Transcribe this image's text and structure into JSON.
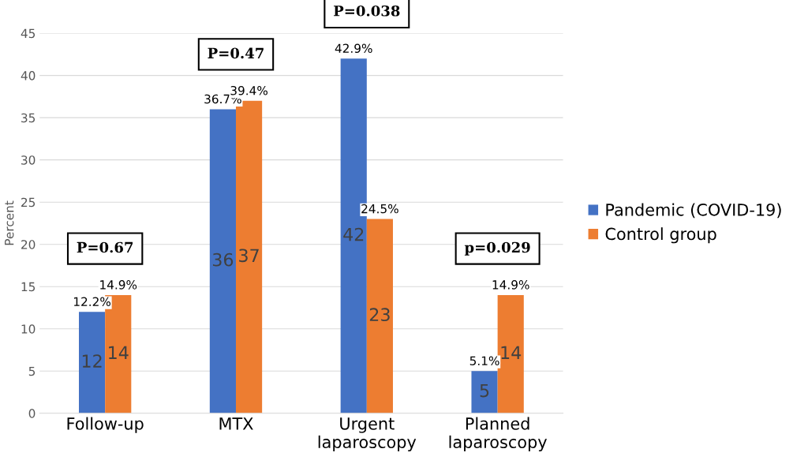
{
  "chart_data": {
    "type": "bar",
    "ylabel": "Percent",
    "categories": [
      "Follow-up",
      "MTX",
      "Urgent\nlaparoscopy",
      "Planned\nlaparoscopy"
    ],
    "series": [
      {
        "name": "Pandemic (COVID-19)",
        "color": "#4472c4",
        "values": [
          12,
          36,
          42,
          5
        ]
      },
      {
        "name": "Control group",
        "color": "#ed7d31",
        "values": [
          14,
          37,
          23,
          14
        ]
      }
    ],
    "ylim": [
      0,
      45
    ],
    "yticks": [
      0,
      5,
      10,
      15,
      20,
      25,
      30,
      35,
      40,
      45
    ],
    "grid": "y",
    "legend": "right",
    "data_labels": true,
    "annotations": [
      {
        "text": "12.2%",
        "x": "Follow-up",
        "y": 12
      },
      {
        "text": "14.9%",
        "x": "Follow-up",
        "y": 14
      },
      {
        "text": "36.7%",
        "x": "MTX",
        "y": 36
      },
      {
        "text": "39.4%",
        "x": "MTX",
        "y": 37
      },
      {
        "text": "42.9%",
        "x": "Urgent\nlaparoscopy",
        "y": 42
      },
      {
        "text": "24.5%",
        "x": "Urgent\nlaparoscopy",
        "y": 23
      },
      {
        "text": "5.1%",
        "x": "Planned\nlaparoscopy",
        "y": 5
      },
      {
        "text": "14.9%",
        "x": "Planned\nlaparoscopy",
        "y": 14
      },
      "P=0.67",
      "P=0.47",
      "P=0.038",
      "p=0.029"
    ]
  }
}
